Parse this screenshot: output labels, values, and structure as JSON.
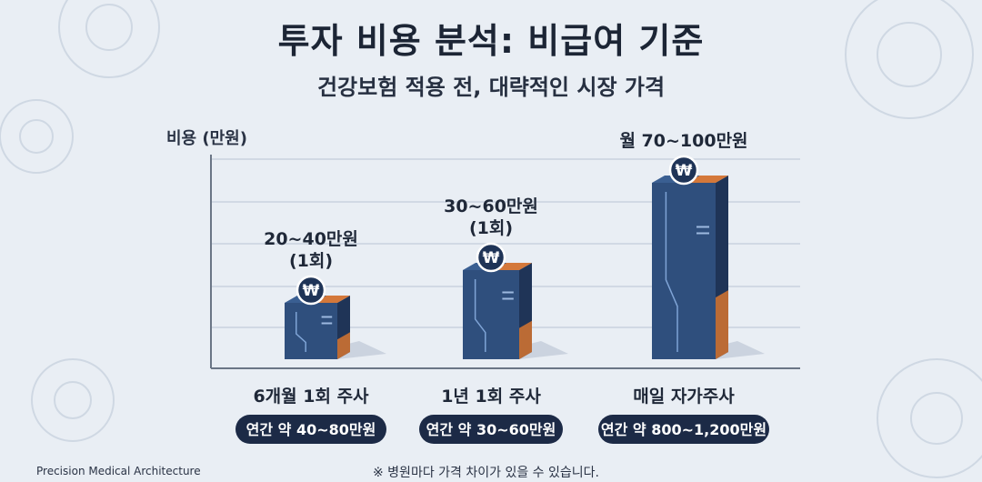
{
  "title": "투자 비용 분석: 비급여 기준",
  "subtitle": "건강보험 적용 전, 대략적인 시장 가격",
  "footer": {
    "brand": "Precision Medical Architecture",
    "note": "※ 병원마다 가격 차이가 있을 수 있습니다."
  },
  "colors": {
    "bar_front": "#2f4f7d",
    "bar_side": "#1f3457",
    "bar_top": "#3a5f92",
    "accent": "#f07d2a",
    "pill": "#1c2a46",
    "coin": "#1f3457"
  },
  "chart_data": {
    "type": "bar",
    "ylabel": "비용 (만원)",
    "grid": true,
    "categories": [
      "6개월 1회 주사",
      "1년 1회 주사",
      "매일 자가주사"
    ],
    "series": [
      {
        "values": [
          30,
          45,
          85
        ],
        "value_ranges": [
          [
            20,
            40
          ],
          [
            30,
            60
          ],
          [
            70,
            100
          ]
        ],
        "data_labels": [
          [
            "20~40만원",
            "(1회)"
          ],
          [
            "30~60만원",
            "(1회)"
          ],
          [
            "월 70~100만원"
          ]
        ],
        "annual_cost_labels": [
          "연간 약 40~80만원",
          "연간 약 30~60만원",
          "연간 약 800~1,200만원"
        ]
      }
    ],
    "icon": "won-coin-icon"
  }
}
